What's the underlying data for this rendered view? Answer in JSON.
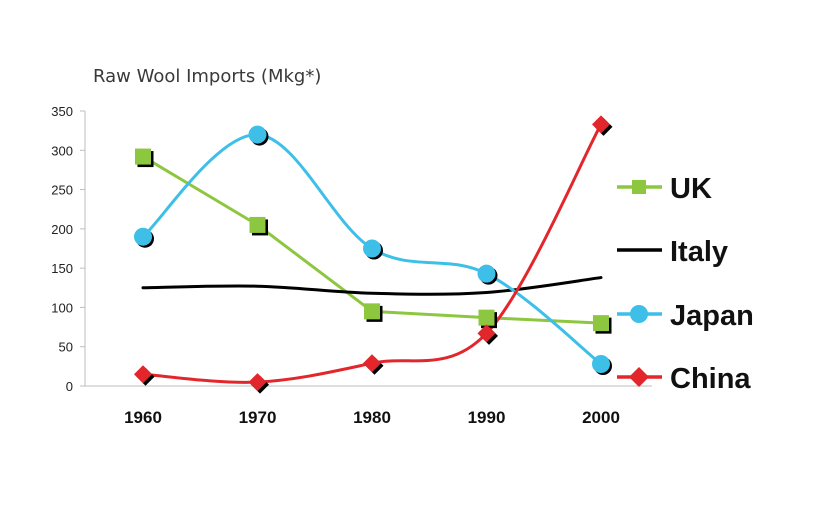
{
  "chart_data": {
    "type": "line",
    "title": "Raw Wool Imports (Mkg*)",
    "xlabel": "",
    "ylabel": "",
    "categories": [
      "1960",
      "1970",
      "1980",
      "1990",
      "2000"
    ],
    "ylim": [
      0,
      350
    ],
    "yticks": [
      0,
      50,
      100,
      150,
      200,
      250,
      300,
      350
    ],
    "grid": false,
    "legend_position": "right",
    "series": [
      {
        "name": "UK",
        "color": "#8dc63f",
        "marker": "square",
        "smooth": false,
        "values": [
          292,
          205,
          95,
          87,
          80
        ]
      },
      {
        "name": "Italy",
        "color": "#000000",
        "marker": "none",
        "smooth": true,
        "values": [
          125,
          127,
          118,
          119,
          138
        ]
      },
      {
        "name": "Japan",
        "color": "#3dbfe8",
        "marker": "circle",
        "smooth": true,
        "values": [
          190,
          320,
          175,
          143,
          28
        ]
      },
      {
        "name": "China",
        "color": "#e3262b",
        "marker": "diamond",
        "smooth": true,
        "values": [
          15,
          5,
          29,
          67,
          333
        ]
      }
    ]
  }
}
